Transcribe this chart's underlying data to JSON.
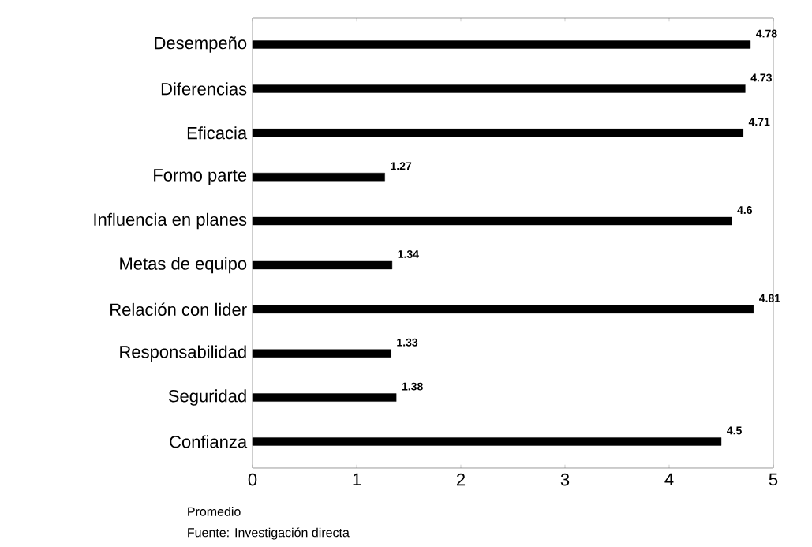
{
  "chart_data": {
    "type": "bar",
    "orientation": "horizontal",
    "categories": [
      "Desempeño",
      "Diferencias",
      "Eficacia",
      "Formo parte",
      "Influencia en planes",
      "Metas de equipo",
      "Relación con lider",
      "Responsabilidad",
      "Seguridad",
      "Confianza"
    ],
    "values": [
      4.78,
      4.73,
      4.71,
      1.27,
      4.6,
      1.34,
      4.81,
      1.33,
      1.38,
      4.5
    ],
    "color": "#000000",
    "data_labels": true,
    "xlim": [
      0,
      5
    ],
    "xticks": [
      0,
      1,
      2,
      3,
      4,
      5
    ],
    "annotations": [
      "Promedio",
      "Fuente: Investigación directa"
    ]
  }
}
